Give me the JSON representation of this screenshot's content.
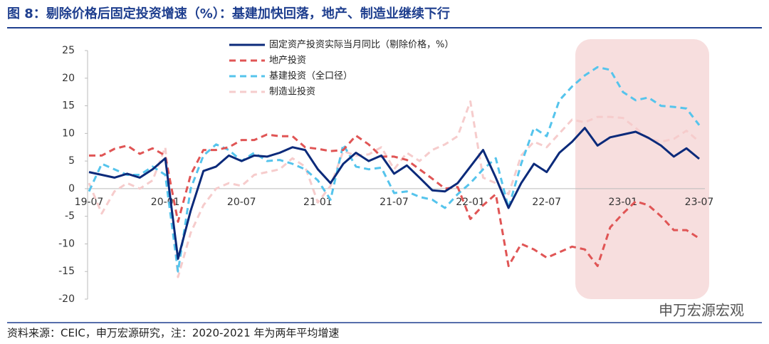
{
  "header": {
    "title": "图 8：剔除价格后固定投资增速（%）：基建加快回落，地产、制造业继续下行"
  },
  "chart_data": {
    "type": "line",
    "categories": [
      "19-07",
      null,
      null,
      null,
      null,
      null,
      "20-01",
      null,
      null,
      null,
      null,
      null,
      "20-07",
      null,
      null,
      null,
      null,
      null,
      "21-01",
      null,
      null,
      null,
      null,
      null,
      "21-07",
      null,
      null,
      null,
      null,
      null,
      "22-01",
      null,
      null,
      null,
      null,
      null,
      "22-07",
      null,
      null,
      null,
      null,
      null,
      "23-01",
      null,
      null,
      null,
      null,
      null,
      "23-07"
    ],
    "ylim": [
      -20,
      25
    ],
    "yticks": [
      -20,
      -15,
      -10,
      -5,
      0,
      5,
      10,
      15,
      20,
      25
    ],
    "legend": "top",
    "series": [
      {
        "name": "固定资产投资实际当月同比（剔除价格，%）",
        "color": "#0b2a7a",
        "dash": false,
        "values": [
          3.0,
          2.5,
          2.0,
          2.7,
          2.0,
          3.5,
          5.5,
          -12.7,
          -4.0,
          3.2,
          4.0,
          6.0,
          5.0,
          6.0,
          5.8,
          6.5,
          7.5,
          7.0,
          3.5,
          1.0,
          4.5,
          6.5,
          5.0,
          6.0,
          2.7,
          4.2,
          2.0,
          -0.3,
          -0.5,
          1.0,
          4.0,
          7.0,
          2.0,
          -3.5,
          1.0,
          4.5,
          3.0,
          6.5,
          8.5,
          11.0,
          7.8,
          9.3,
          9.8,
          10.3,
          9.2,
          7.8,
          5.8,
          7.3,
          5.4
        ]
      },
      {
        "name": "地产投资",
        "color": "#e05555",
        "dash": true,
        "values": [
          6.0,
          6.0,
          7.2,
          7.8,
          6.3,
          7.3,
          6.0,
          -6.0,
          2.5,
          7.0,
          7.0,
          7.5,
          8.8,
          8.8,
          9.8,
          9.5,
          9.5,
          7.5,
          7.2,
          6.8,
          7.0,
          9.6,
          8.0,
          5.8,
          5.8,
          5.2,
          3.5,
          1.8,
          0.0,
          0.3,
          -5.5,
          -3.0,
          -1.0,
          -14.0,
          -10.0,
          -11.0,
          -12.5,
          -11.5,
          -10.5,
          -11.0,
          -14.0,
          -7.0,
          -4.5,
          -2.3,
          -3.0,
          -5.0,
          -7.5,
          -7.5,
          -9.0
        ]
      },
      {
        "name": "基建投资（全口径）",
        "color": "#55c4ec",
        "dash": true,
        "values": [
          -0.5,
          4.5,
          3.5,
          2.5,
          2.5,
          4.0,
          2.5,
          -15.0,
          0.0,
          6.0,
          8.0,
          7.0,
          5.0,
          6.5,
          5.0,
          5.2,
          4.5,
          3.5,
          1.5,
          -2.0,
          8.0,
          4.0,
          3.5,
          3.8,
          -0.8,
          -0.5,
          -1.5,
          -2.0,
          -3.5,
          -1.0,
          1.0,
          3.5,
          5.5,
          -3.5,
          4.5,
          11.0,
          9.5,
          16.0,
          18.5,
          20.5,
          22.0,
          21.5,
          17.5,
          16.0,
          16.5,
          15.0,
          14.8,
          14.5,
          11.5
        ]
      },
      {
        "name": "制造业投资",
        "color": "#f6cccc",
        "dash": true,
        "values": [
          1.0,
          -4.5,
          -0.5,
          1.0,
          0.0,
          1.5,
          7.5,
          -16.0,
          -8.0,
          -3.0,
          0.0,
          1.0,
          0.5,
          2.5,
          3.0,
          3.5,
          5.5,
          4.0,
          -2.5,
          0.5,
          6.8,
          6.0,
          6.2,
          7.5,
          3.5,
          6.5,
          5.0,
          7.0,
          8.0,
          9.5,
          15.8,
          2.0,
          1.0,
          -1.0,
          6.0,
          8.5,
          7.5,
          10.0,
          12.5,
          12.0,
          13.0,
          13.0,
          12.8,
          11.0,
          9.0,
          8.5,
          9.0,
          10.5,
          8.5
        ]
      }
    ]
  },
  "watermark": "申万宏源宏观",
  "footer": {
    "source": "资料来源：CEIC，申万宏源研究，注：2020-2021 年为两年平均增速"
  }
}
